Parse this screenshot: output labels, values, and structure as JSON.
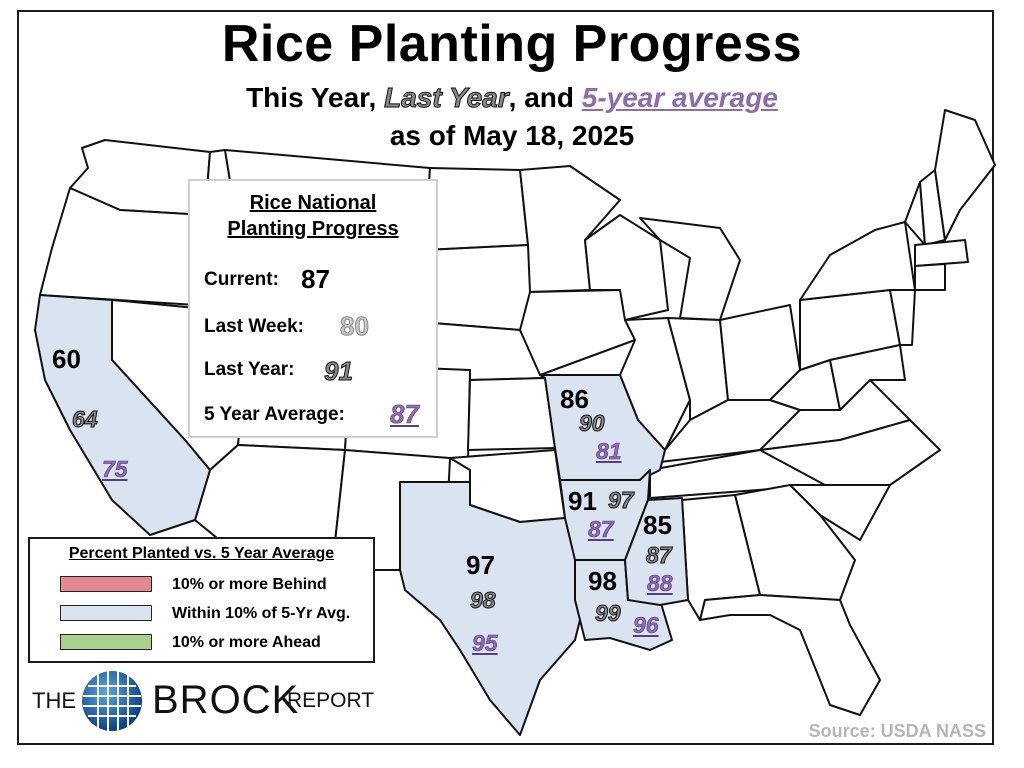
{
  "title": "Rice Planting Progress",
  "subtitle": {
    "this_year": "This Year,",
    "last_year": "Last Year",
    "comma_and": ", and",
    "five_year": "5-year average"
  },
  "as_of": "as of May 18, 2025",
  "national": {
    "title_line1": "Rice National",
    "title_line2": "Planting Progress",
    "current_label": "Current:",
    "current_value": "87",
    "last_week_label": "Last Week:",
    "last_week_value": "80",
    "last_year_label": "Last Year:",
    "last_year_value": "91",
    "five_year_label": "5 Year Average:",
    "five_year_value": "87"
  },
  "states": [
    {
      "state": "California",
      "current": "60",
      "last_year": "64",
      "five_year_avg": "75"
    },
    {
      "state": "Missouri",
      "current": "86",
      "last_year": "90",
      "five_year_avg": "81"
    },
    {
      "state": "Arkansas",
      "current": "91",
      "last_year": "97",
      "five_year_avg": "87"
    },
    {
      "state": "Mississippi",
      "current": "85",
      "last_year": "87",
      "five_year_avg": "88"
    },
    {
      "state": "Texas",
      "current": "97",
      "last_year": "98",
      "five_year_avg": "95"
    },
    {
      "state": "Louisiana",
      "current": "98",
      "last_year": "99",
      "five_year_avg": "96"
    }
  ],
  "legend": {
    "title": "Percent Planted vs. 5 Year Average",
    "items": [
      {
        "label": "10% or more Behind",
        "color": "#e2888e"
      },
      {
        "label": "Within 10% of 5-Yr Avg.",
        "color": "#dae3f0"
      },
      {
        "label": "10% or more Ahead",
        "color": "#a9d08e"
      }
    ]
  },
  "colors": {
    "rice_state_fill": "#dae3f0",
    "other_state_fill": "#ffffff",
    "five_year_purple": "#8c6bb0",
    "last_year_gray": "#8a8a8a"
  },
  "logo": {
    "the": "THE",
    "brock": "BROCK",
    "report": "REPORT"
  },
  "source": "Source: USDA NASS"
}
